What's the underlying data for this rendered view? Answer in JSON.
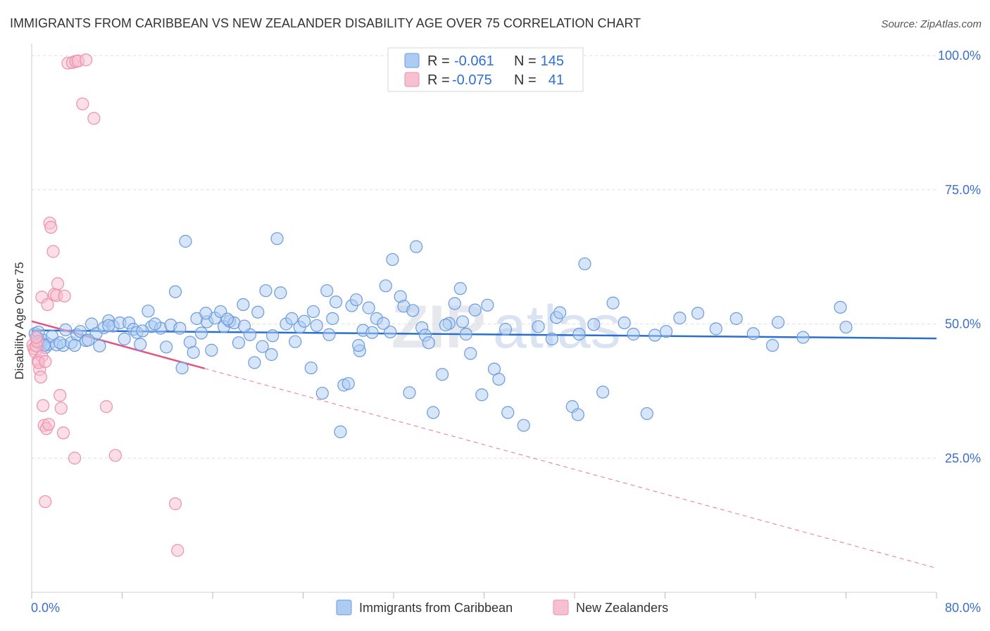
{
  "title": "IMMIGRANTS FROM CARIBBEAN VS NEW ZEALANDER DISABILITY AGE OVER 75 CORRELATION CHART",
  "source": "Source: ZipAtlas.com",
  "watermark": {
    "zip": "ZIP",
    "atlas": "atlas"
  },
  "legend": {
    "series1": {
      "r_label": "R =",
      "r_value": "-0.061",
      "n_label": "N =",
      "n_value": "145"
    },
    "series2": {
      "r_label": "R =",
      "r_value": "-0.075",
      "n_label": "N =",
      "n_value": "41"
    }
  },
  "bottom_legend": {
    "series1": "Immigrants from Caribbean",
    "series2": "New Zealanders"
  },
  "colors": {
    "series1_fill": "#aecbf2",
    "series1_stroke": "#6a9be0",
    "series1_line": "#2a6fcc",
    "series2_fill": "#f7c0d0",
    "series2_stroke": "#ee8fab",
    "series2_line": "#e05585",
    "grid": "#dddddd",
    "tick_label": "#3a6fc9"
  },
  "chart_data": {
    "type": "scatter",
    "title": "IMMIGRANTS FROM CARIBBEAN VS NEW ZEALANDER DISABILITY AGE OVER 75 CORRELATION CHART",
    "xlabel": "",
    "ylabel": "Disability Age Over 75",
    "xlim": [
      0,
      80
    ],
    "ylim": [
      0,
      105
    ],
    "x_tick_labels": [
      "0.0%",
      "80.0%"
    ],
    "y_ticks": [
      25,
      50,
      75,
      100
    ],
    "y_tick_labels": [
      "25.0%",
      "50.0%",
      "75.0%",
      "100.0%"
    ],
    "grid": true,
    "legend_position": "top-center",
    "series": [
      {
        "name": "Immigrants from Caribbean",
        "trend": {
          "x": [
            0,
            80
          ],
          "y": [
            48.8,
            47.3
          ],
          "style": "solid"
        },
        "points": [
          [
            0.3,
            48.2
          ],
          [
            0.5,
            47.5
          ],
          [
            0.7,
            46.8
          ],
          [
            0.8,
            46.3
          ],
          [
            1.0,
            47.0
          ],
          [
            1.2,
            45.6
          ],
          [
            1.5,
            46.2
          ],
          [
            1.8,
            47.7
          ],
          [
            2.2,
            46.1
          ],
          [
            2.8,
            46.0
          ],
          [
            3.0,
            48.9
          ],
          [
            3.5,
            46.5
          ],
          [
            4.0,
            48.0
          ],
          [
            4.3,
            48.6
          ],
          [
            4.8,
            46.9
          ],
          [
            5.3,
            50.0
          ],
          [
            5.7,
            48.2
          ],
          [
            6.0,
            45.9
          ],
          [
            6.4,
            49.3
          ],
          [
            6.8,
            50.6
          ],
          [
            7.2,
            49.6
          ],
          [
            7.8,
            50.2
          ],
          [
            8.2,
            47.2
          ],
          [
            8.6,
            50.2
          ],
          [
            9.0,
            49.0
          ],
          [
            9.3,
            48.4
          ],
          [
            9.6,
            46.2
          ],
          [
            10.3,
            52.4
          ],
          [
            10.6,
            49.5
          ],
          [
            11.4,
            49.2
          ],
          [
            11.9,
            45.7
          ],
          [
            12.3,
            49.8
          ],
          [
            12.7,
            56.0
          ],
          [
            13.3,
            41.8
          ],
          [
            13.6,
            65.4
          ],
          [
            14.0,
            46.6
          ],
          [
            14.3,
            44.7
          ],
          [
            14.6,
            51.0
          ],
          [
            15.0,
            48.3
          ],
          [
            15.5,
            50.4
          ],
          [
            15.9,
            45.1
          ],
          [
            16.2,
            51.1
          ],
          [
            16.7,
            52.3
          ],
          [
            17.0,
            49.5
          ],
          [
            17.5,
            50.5
          ],
          [
            17.9,
            50.2
          ],
          [
            18.3,
            46.5
          ],
          [
            18.7,
            53.6
          ],
          [
            19.3,
            48.0
          ],
          [
            19.7,
            42.8
          ],
          [
            20.0,
            52.2
          ],
          [
            20.4,
            45.8
          ],
          [
            20.7,
            56.2
          ],
          [
            21.2,
            44.3
          ],
          [
            21.7,
            65.9
          ],
          [
            22.0,
            55.8
          ],
          [
            22.5,
            50.0
          ],
          [
            23.0,
            51.0
          ],
          [
            23.3,
            46.7
          ],
          [
            23.7,
            49.4
          ],
          [
            24.7,
            41.8
          ],
          [
            24.9,
            52.3
          ],
          [
            25.2,
            49.7
          ],
          [
            25.7,
            37.1
          ],
          [
            26.1,
            56.2
          ],
          [
            26.6,
            51.0
          ],
          [
            26.9,
            54.1
          ],
          [
            27.3,
            29.9
          ],
          [
            27.6,
            38.6
          ],
          [
            28.0,
            38.9
          ],
          [
            28.3,
            53.4
          ],
          [
            28.7,
            54.5
          ],
          [
            29.0,
            45.0
          ],
          [
            29.3,
            48.8
          ],
          [
            29.8,
            53.0
          ],
          [
            30.1,
            48.4
          ],
          [
            30.5,
            51.0
          ],
          [
            31.3,
            57.1
          ],
          [
            31.7,
            48.5
          ],
          [
            31.9,
            62.0
          ],
          [
            32.6,
            55.1
          ],
          [
            32.9,
            53.3
          ],
          [
            33.4,
            37.2
          ],
          [
            34.0,
            64.4
          ],
          [
            34.5,
            49.3
          ],
          [
            34.8,
            47.9
          ],
          [
            35.5,
            33.5
          ],
          [
            36.3,
            40.6
          ],
          [
            36.9,
            50.1
          ],
          [
            37.4,
            53.8
          ],
          [
            37.9,
            56.6
          ],
          [
            38.4,
            48.1
          ],
          [
            38.8,
            44.5
          ],
          [
            39.2,
            52.6
          ],
          [
            39.8,
            36.8
          ],
          [
            40.3,
            53.5
          ],
          [
            40.9,
            41.6
          ],
          [
            41.3,
            39.7
          ],
          [
            42.1,
            33.5
          ],
          [
            43.5,
            31.1
          ],
          [
            46.4,
            51.2
          ],
          [
            46.7,
            52.1
          ],
          [
            47.8,
            34.6
          ],
          [
            48.3,
            33.1
          ],
          [
            48.4,
            48.1
          ],
          [
            48.9,
            61.2
          ],
          [
            50.5,
            37.3
          ],
          [
            51.4,
            53.9
          ],
          [
            53.2,
            48.1
          ],
          [
            54.4,
            33.3
          ],
          [
            55.1,
            47.9
          ],
          [
            57.3,
            51.1
          ],
          [
            58.9,
            52.0
          ],
          [
            62.3,
            51.0
          ],
          [
            65.5,
            46.0
          ],
          [
            66.0,
            50.3
          ],
          [
            71.5,
            53.1
          ],
          [
            72.0,
            49.4
          ],
          [
            0.6,
            48.5
          ],
          [
            1.1,
            46.0
          ],
          [
            2.5,
            46.5
          ],
          [
            3.8,
            46.0
          ],
          [
            5.0,
            47.0
          ],
          [
            6.8,
            49.7
          ],
          [
            9.8,
            48.7
          ],
          [
            10.9,
            50.0
          ],
          [
            13.1,
            49.2
          ],
          [
            15.4,
            52.0
          ],
          [
            17.3,
            50.9
          ],
          [
            18.8,
            49.6
          ],
          [
            21.3,
            47.8
          ],
          [
            24.1,
            50.5
          ],
          [
            26.3,
            48.0
          ],
          [
            28.9,
            46.0
          ],
          [
            31.1,
            50.1
          ],
          [
            33.7,
            52.5
          ],
          [
            35.1,
            46.5
          ],
          [
            36.6,
            49.8
          ],
          [
            38.1,
            50.4
          ],
          [
            41.9,
            49.0
          ],
          [
            44.8,
            49.5
          ],
          [
            46.0,
            47.2
          ],
          [
            49.7,
            49.9
          ],
          [
            52.4,
            50.2
          ],
          [
            56.1,
            48.6
          ],
          [
            60.5,
            49.1
          ],
          [
            63.8,
            48.2
          ],
          [
            68.2,
            47.5
          ]
        ]
      },
      {
        "name": "New Zealanders",
        "trend": {
          "x": [
            0,
            80
          ],
          "y": [
            50.5,
            4.5
          ],
          "style": "solid-then-dashed",
          "solid_to_x": 15.3
        },
        "points": [
          [
            0.1,
            46.1
          ],
          [
            0.2,
            45.4
          ],
          [
            0.3,
            44.8
          ],
          [
            0.4,
            45.9
          ],
          [
            0.5,
            46.7
          ],
          [
            0.6,
            43.2
          ],
          [
            0.7,
            41.5
          ],
          [
            0.8,
            40.1
          ],
          [
            0.9,
            55.0
          ],
          [
            1.0,
            34.8
          ],
          [
            1.1,
            31.1
          ],
          [
            1.2,
            16.9
          ],
          [
            1.3,
            30.5
          ],
          [
            1.4,
            53.6
          ],
          [
            1.6,
            68.8
          ],
          [
            1.7,
            68.0
          ],
          [
            1.9,
            63.5
          ],
          [
            2.0,
            55.5
          ],
          [
            2.2,
            55.3
          ],
          [
            2.3,
            57.5
          ],
          [
            2.5,
            36.7
          ],
          [
            2.6,
            34.3
          ],
          [
            2.8,
            29.7
          ],
          [
            2.9,
            55.2
          ],
          [
            3.2,
            98.6
          ],
          [
            3.6,
            98.7
          ],
          [
            3.9,
            98.9
          ],
          [
            4.1,
            99.0
          ],
          [
            4.5,
            91.0
          ],
          [
            4.8,
            99.2
          ],
          [
            5.5,
            88.3
          ],
          [
            6.6,
            34.6
          ],
          [
            7.4,
            25.5
          ],
          [
            12.7,
            16.5
          ],
          [
            12.9,
            7.8
          ],
          [
            1.5,
            31.3
          ],
          [
            0.9,
            44.0
          ],
          [
            0.4,
            47.5
          ],
          [
            0.6,
            42.8
          ],
          [
            1.2,
            43.0
          ],
          [
            3.8,
            25.0
          ]
        ]
      }
    ]
  }
}
